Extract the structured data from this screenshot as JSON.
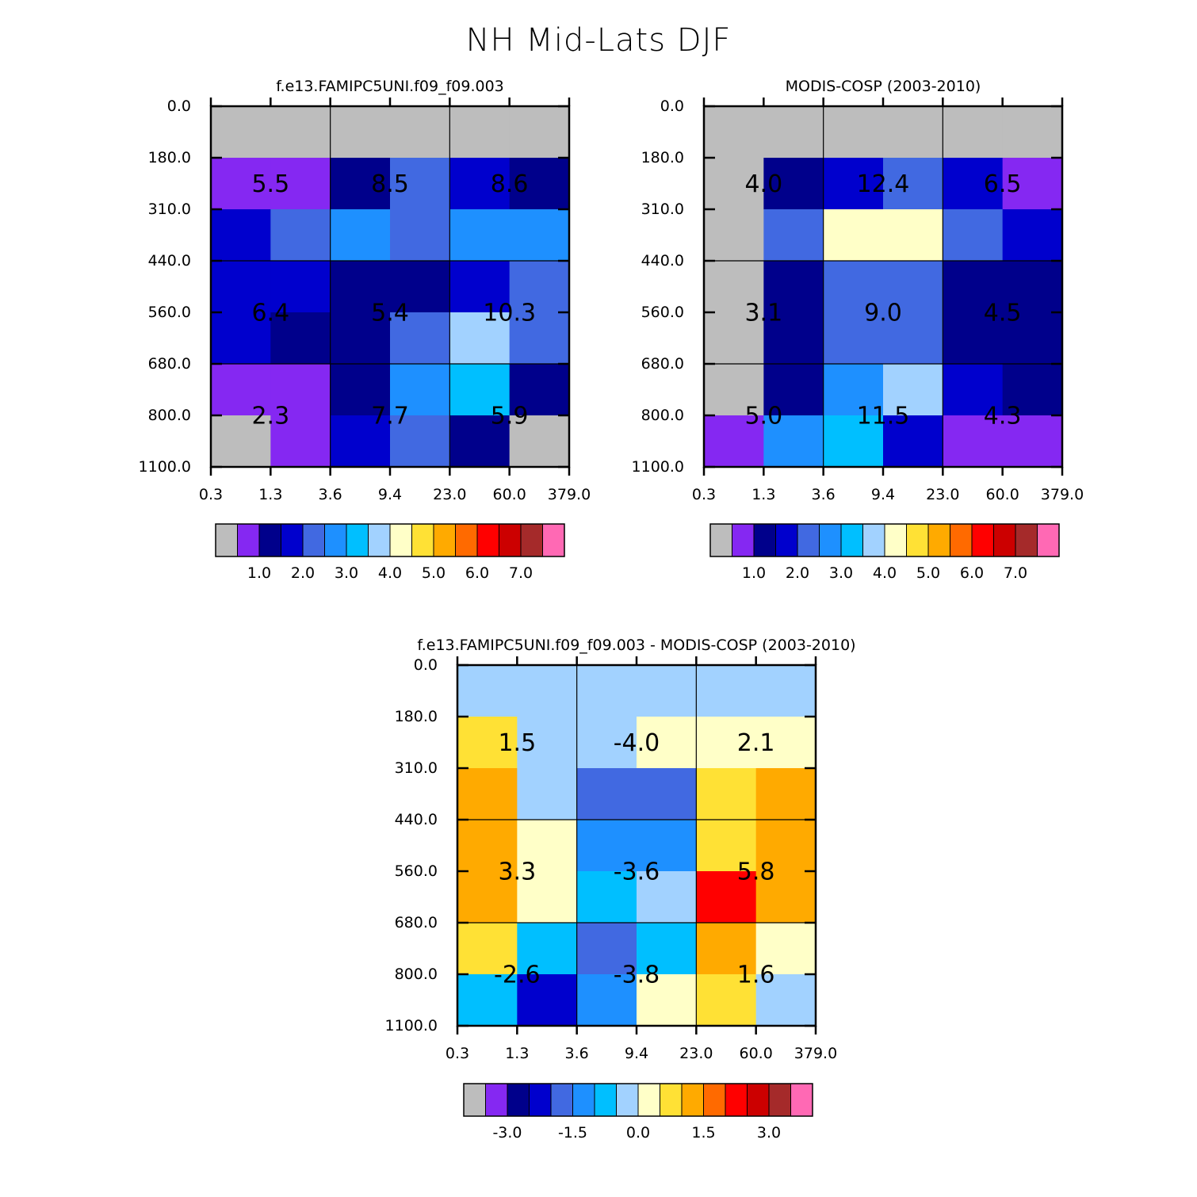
{
  "title": "NH Mid-Lats DJF",
  "palette": [
    "#bdbdbd",
    "#8528f2",
    "#00008b",
    "#0000cd",
    "#4169e1",
    "#1e90ff",
    "#00bfff",
    "#a2d2ff",
    "#ffffc8",
    "#ffe135",
    "#ffaa00",
    "#ff6a00",
    "#ff0000",
    "#cc0000",
    "#a52a2a",
    "#ff69b4"
  ],
  "chart_data": [
    {
      "type": "heatmap",
      "title": "f.e13.FAMIPC5UNI.f09_f09.003",
      "x_tick_labels": [
        "0.3",
        "1.3",
        "3.6",
        "9.4",
        "23.0",
        "60.0",
        "379.0"
      ],
      "y_tick_labels": [
        "0.0",
        "180.0",
        "310.0",
        "440.0",
        "560.0",
        "680.0",
        "800.0",
        "1100.0"
      ],
      "cells": [
        [
          0,
          0,
          0,
          0,
          0,
          0
        ],
        [
          1,
          1,
          2,
          4,
          3,
          2
        ],
        [
          3,
          4,
          5,
          4,
          5,
          5
        ],
        [
          3,
          3,
          2,
          2,
          3,
          4
        ],
        [
          3,
          2,
          2,
          4,
          7,
          4
        ],
        [
          1,
          1,
          2,
          5,
          6,
          2
        ],
        [
          0,
          1,
          3,
          4,
          2,
          0
        ]
      ],
      "box_labels": [
        [
          "",
          "",
          ""
        ],
        [
          "5.5",
          "8.5",
          "8.6"
        ],
        [
          "6.4",
          "5.4",
          "10.3"
        ],
        [
          "2.3",
          "7.7",
          "5.9"
        ]
      ],
      "colorbar": {
        "labels": [
          "1.0",
          "2.0",
          "3.0",
          "4.0",
          "5.0",
          "6.0",
          "7.0"
        ]
      }
    },
    {
      "type": "heatmap",
      "title": "MODIS-COSP (2003-2010)",
      "x_tick_labels": [
        "0.3",
        "1.3",
        "3.6",
        "9.4",
        "23.0",
        "60.0",
        "379.0"
      ],
      "y_tick_labels": [
        "0.0",
        "180.0",
        "310.0",
        "440.0",
        "560.0",
        "680.0",
        "800.0",
        "1100.0"
      ],
      "cells": [
        [
          0,
          0,
          0,
          0,
          0,
          0
        ],
        [
          0,
          2,
          3,
          4,
          3,
          1
        ],
        [
          0,
          4,
          8,
          8,
          4,
          3
        ],
        [
          0,
          2,
          4,
          4,
          2,
          2
        ],
        [
          0,
          2,
          4,
          4,
          2,
          2
        ],
        [
          0,
          2,
          5,
          7,
          3,
          2
        ],
        [
          1,
          5,
          6,
          3,
          1,
          1
        ]
      ],
      "box_labels": [
        [
          "",
          "",
          ""
        ],
        [
          "4.0",
          "12.4",
          "6.5"
        ],
        [
          "3.1",
          "9.0",
          "4.5"
        ],
        [
          "5.0",
          "11.5",
          "4.3"
        ]
      ],
      "colorbar": {
        "labels": [
          "1.0",
          "2.0",
          "3.0",
          "4.0",
          "5.0",
          "6.0",
          "7.0"
        ]
      }
    },
    {
      "type": "heatmap",
      "title": "f.e13.FAMIPC5UNI.f09_f09.003 - MODIS-COSP (2003-2010)",
      "x_tick_labels": [
        "0.3",
        "1.3",
        "3.6",
        "9.4",
        "23.0",
        "60.0",
        "379.0"
      ],
      "y_tick_labels": [
        "0.0",
        "180.0",
        "310.0",
        "440.0",
        "560.0",
        "680.0",
        "800.0",
        "1100.0"
      ],
      "cells": [
        [
          7,
          7,
          7,
          7,
          7,
          7
        ],
        [
          9,
          7,
          7,
          8,
          8,
          8
        ],
        [
          10,
          7,
          4,
          4,
          9,
          10
        ],
        [
          10,
          8,
          5,
          5,
          9,
          10
        ],
        [
          10,
          8,
          6,
          7,
          12,
          10
        ],
        [
          9,
          6,
          4,
          6,
          10,
          8
        ],
        [
          6,
          3,
          5,
          8,
          9,
          7
        ]
      ],
      "box_labels": [
        [
          "",
          "",
          ""
        ],
        [
          "1.5",
          "-4.0",
          "2.1"
        ],
        [
          "3.3",
          "-3.6",
          "5.8"
        ],
        [
          "-2.6",
          "-3.8",
          "1.6"
        ]
      ],
      "colorbar": {
        "labels": [
          "-3.0",
          "-1.5",
          "0.0",
          "1.5",
          "3.0"
        ]
      }
    }
  ]
}
